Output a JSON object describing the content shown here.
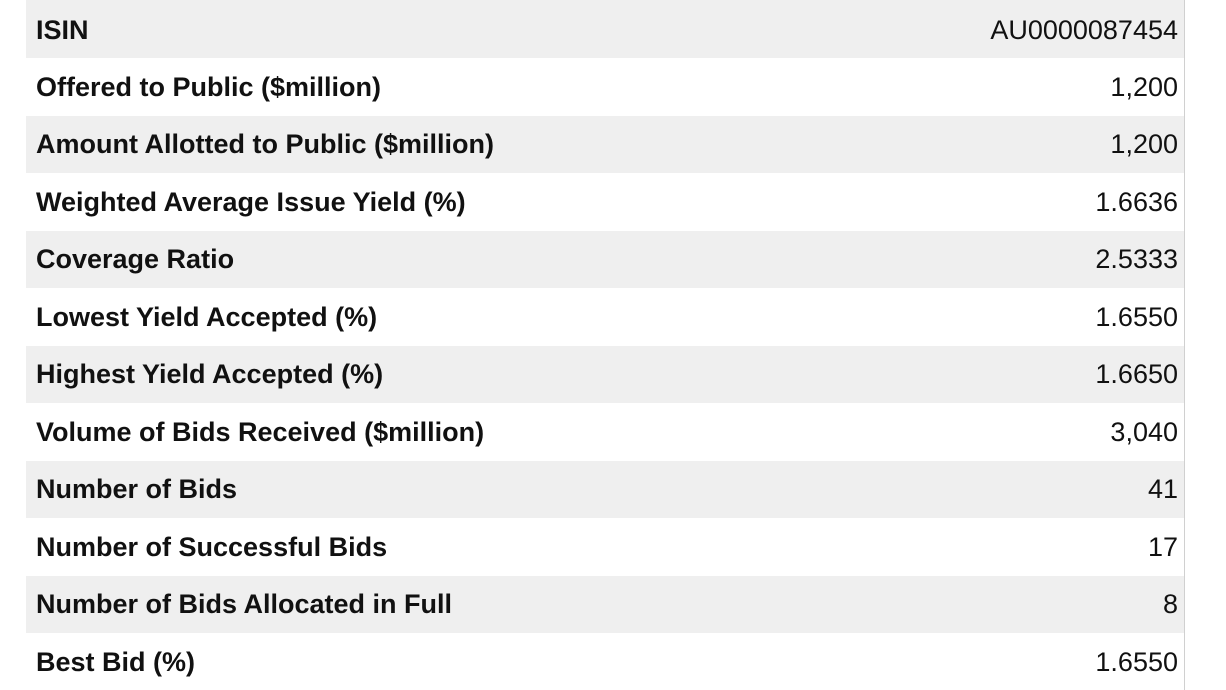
{
  "rows": [
    {
      "label": "ISIN",
      "value": "AU0000087454"
    },
    {
      "label": "Offered to Public ($million)",
      "value": "1,200"
    },
    {
      "label": "Amount Allotted to Public ($million)",
      "value": "1,200"
    },
    {
      "label": "Weighted Average Issue Yield (%)",
      "value": "1.6636"
    },
    {
      "label": "Coverage Ratio",
      "value": "2.5333"
    },
    {
      "label": "Lowest Yield Accepted (%)",
      "value": "1.6550"
    },
    {
      "label": "Highest Yield Accepted (%)",
      "value": "1.6650"
    },
    {
      "label": "Volume of Bids Received ($million)",
      "value": "3,040"
    },
    {
      "label": "Number of Bids",
      "value": "41"
    },
    {
      "label": "Number of Successful Bids",
      "value": "17"
    },
    {
      "label": "Number of Bids Allocated in Full",
      "value": "8"
    },
    {
      "label": "Best Bid (%)",
      "value": "1.6550"
    }
  ]
}
